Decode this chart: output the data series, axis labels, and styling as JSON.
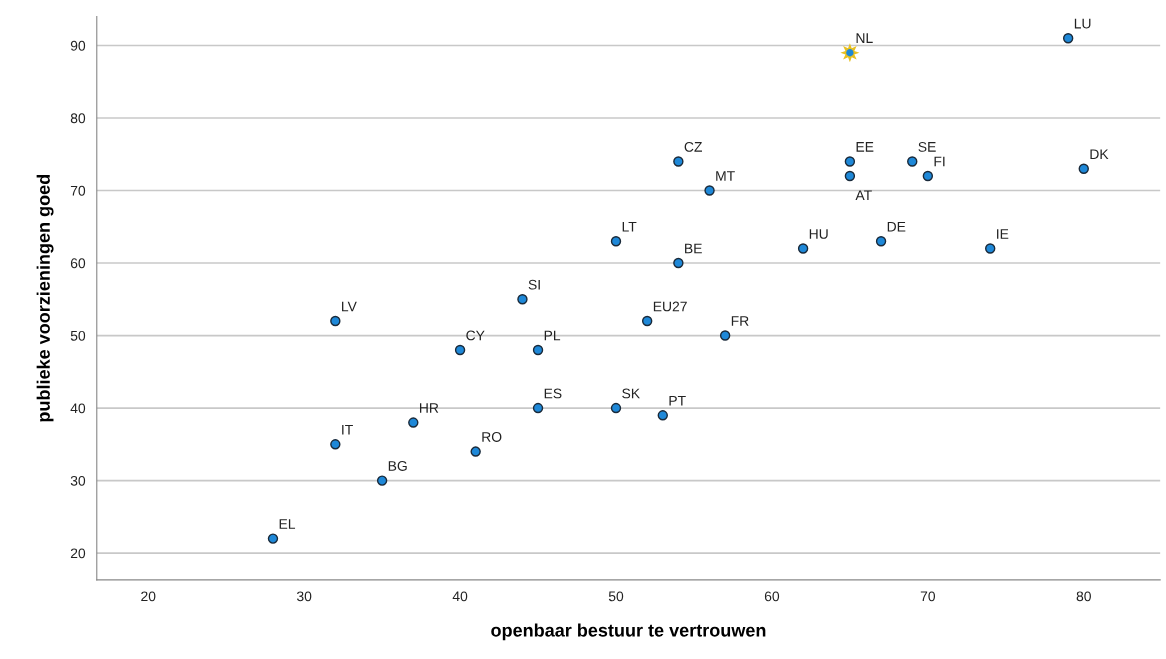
{
  "chart_data": {
    "type": "scatter",
    "xlabel": "openbaar bestuur te vertrouwen",
    "ylabel": "publieke voorzieningen goed",
    "xlim": [
      16.7,
      84.9
    ],
    "ylim": [
      16.3,
      94
    ],
    "xticks": [
      20,
      30,
      40,
      50,
      60,
      70,
      80
    ],
    "yticks": [
      20,
      30,
      40,
      50,
      60,
      70,
      80,
      90
    ],
    "grid": "y",
    "legend": false,
    "series": [
      {
        "color": "#1e88d8",
        "marker": "circle",
        "x": [
          28,
          32,
          32,
          35,
          37,
          41,
          40,
          45,
          45,
          44,
          50,
          53,
          52,
          57,
          50,
          54,
          54,
          56,
          62,
          67,
          74,
          65,
          65,
          69,
          70,
          80,
          79
        ],
        "values": [
          22,
          35,
          52,
          30,
          38,
          34,
          48,
          48,
          40,
          55,
          40,
          39,
          52,
          50,
          63,
          60,
          74,
          70,
          62,
          63,
          62,
          74,
          72,
          74,
          72,
          73,
          91
        ]
      },
      {
        "color": "#e8c020",
        "marker": "star",
        "x": [
          65
        ],
        "values": [
          89
        ]
      }
    ],
    "annotations": [
      {
        "text": "EL",
        "x": 28,
        "y": 22
      },
      {
        "text": "IT",
        "x": 32,
        "y": 35
      },
      {
        "text": "LV",
        "x": 32,
        "y": 52
      },
      {
        "text": "BG",
        "x": 35,
        "y": 30
      },
      {
        "text": "HR",
        "x": 37,
        "y": 38
      },
      {
        "text": "RO",
        "x": 41,
        "y": 34
      },
      {
        "text": "CY",
        "x": 40,
        "y": 48
      },
      {
        "text": "PL",
        "x": 45,
        "y": 48
      },
      {
        "text": "ES",
        "x": 45,
        "y": 40
      },
      {
        "text": "SI",
        "x": 44,
        "y": 55
      },
      {
        "text": "SK",
        "x": 50,
        "y": 40
      },
      {
        "text": "PT",
        "x": 53,
        "y": 39
      },
      {
        "text": "EU27",
        "x": 52,
        "y": 52
      },
      {
        "text": "FR",
        "x": 57,
        "y": 50
      },
      {
        "text": "LT",
        "x": 50,
        "y": 63
      },
      {
        "text": "BE",
        "x": 54,
        "y": 60
      },
      {
        "text": "CZ",
        "x": 54,
        "y": 74
      },
      {
        "text": "MT",
        "x": 56,
        "y": 70
      },
      {
        "text": "HU",
        "x": 62,
        "y": 62
      },
      {
        "text": "DE",
        "x": 67,
        "y": 63
      },
      {
        "text": "IE",
        "x": 74,
        "y": 62
      },
      {
        "text": "EE",
        "x": 65,
        "y": 74
      },
      {
        "text": "AT",
        "x": 65,
        "y": 72
      },
      {
        "text": "SE",
        "x": 69,
        "y": 74
      },
      {
        "text": "FI",
        "x": 70,
        "y": 72
      },
      {
        "text": "DK",
        "x": 80,
        "y": 73
      },
      {
        "text": "LU",
        "x": 79,
        "y": 91
      },
      {
        "text": "NL",
        "x": 65,
        "y": 89
      }
    ]
  }
}
